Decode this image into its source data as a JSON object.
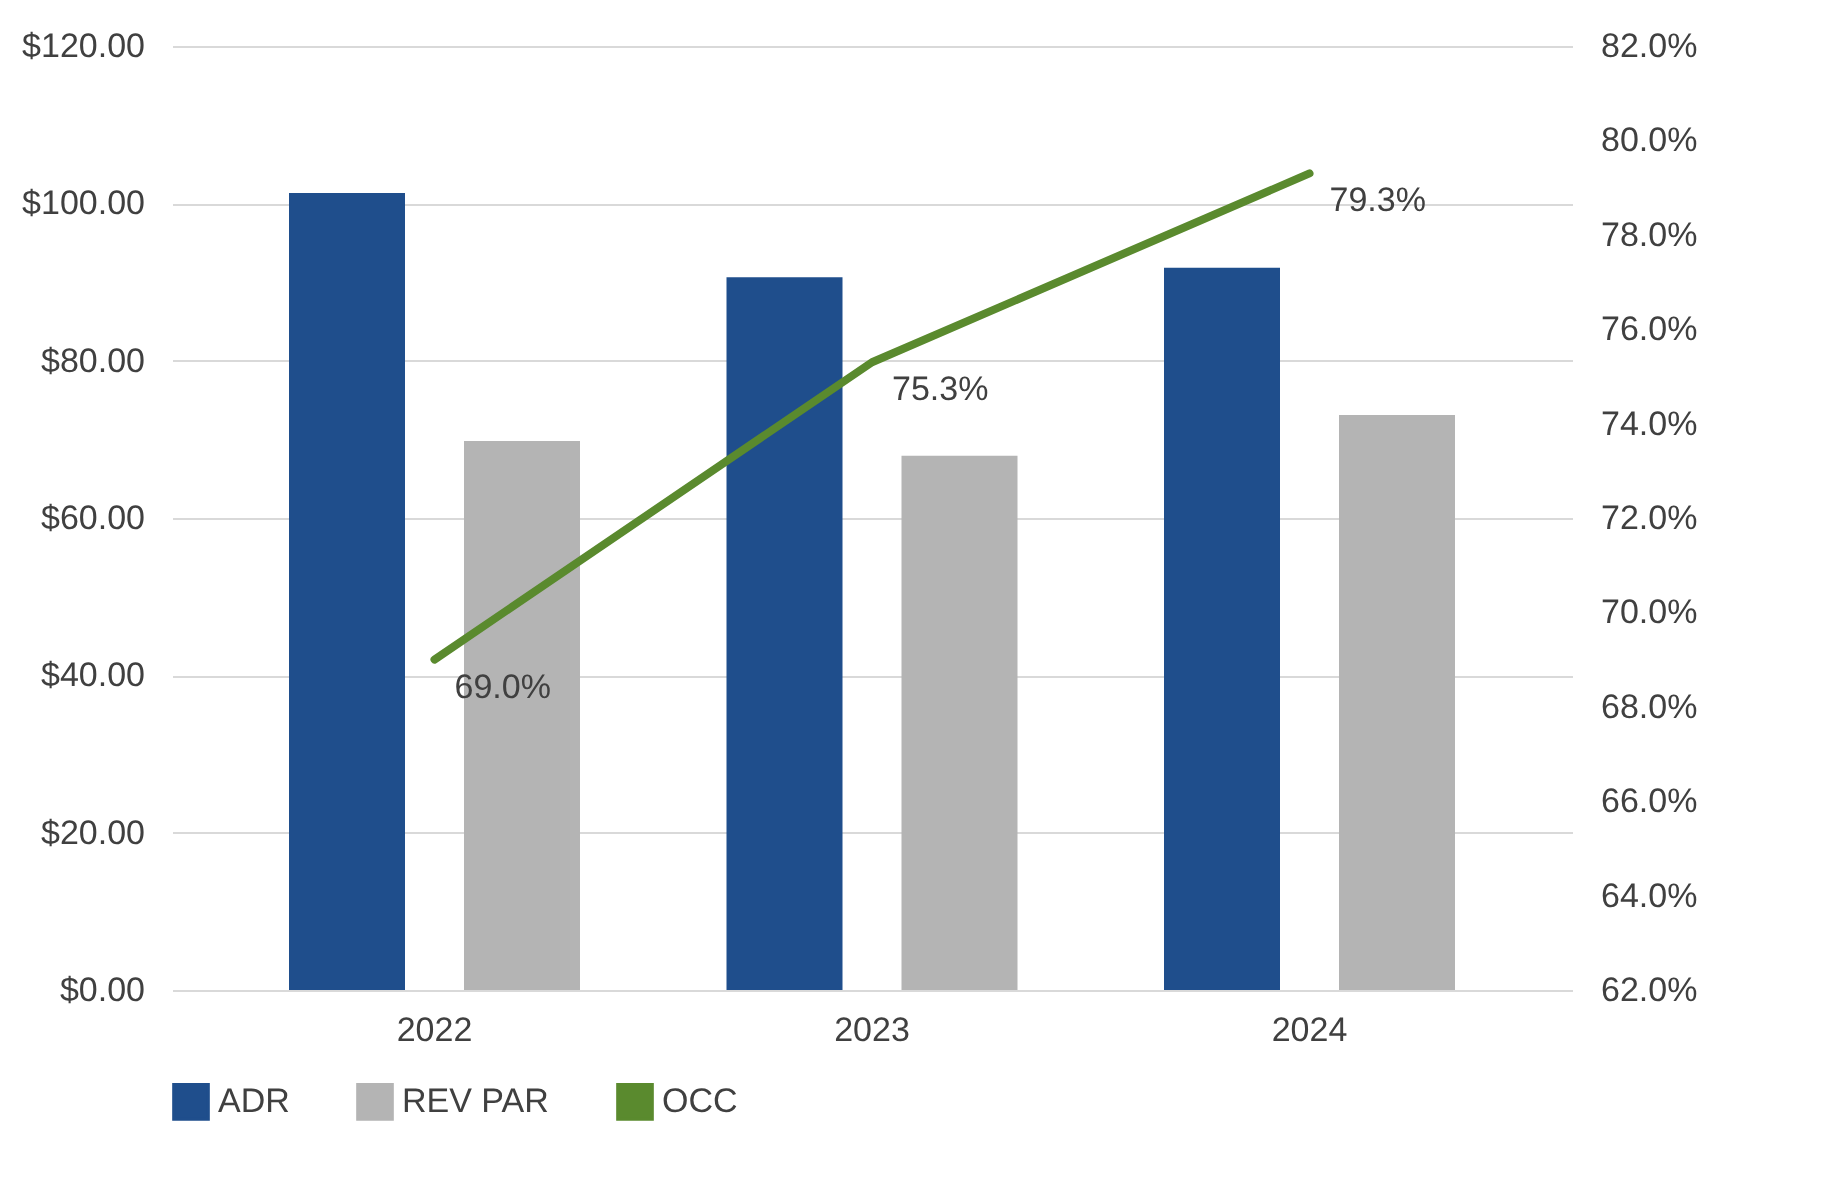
{
  "chart_data": {
    "type": "bar",
    "categories": [
      "2022",
      "2023",
      "2024"
    ],
    "series": [
      {
        "name": "ADR",
        "color": "#1f4e8c",
        "values": [
          101.3,
          90.6,
          91.8
        ]
      },
      {
        "name": "REV PAR",
        "color": "#b4b4b4",
        "values": [
          69.8,
          67.9,
          73.1
        ]
      },
      {
        "name": "OCC",
        "type": "line",
        "axis": "y2",
        "color": "#5a8a2e",
        "values": [
          69.0,
          75.3,
          79.3
        ],
        "value_labels": [
          "69.0%",
          "75.3%",
          "79.3%"
        ]
      }
    ],
    "ylim": [
      0,
      120
    ],
    "yticks": [
      {
        "value": 0,
        "label": "$0.00"
      },
      {
        "value": 20,
        "label": "$20.00"
      },
      {
        "value": 40,
        "label": "$40.00"
      },
      {
        "value": 60,
        "label": "$60.00"
      },
      {
        "value": 80,
        "label": "$80.00"
      },
      {
        "value": 100,
        "label": "$100.00"
      },
      {
        "value": 120,
        "label": "$120.00"
      }
    ],
    "y2lim": [
      62,
      82
    ],
    "y2ticks": [
      {
        "value": 62,
        "label": "62.0%"
      },
      {
        "value": 64,
        "label": "64.0%"
      },
      {
        "value": 66,
        "label": "66.0%"
      },
      {
        "value": 68,
        "label": "68.0%"
      },
      {
        "value": 70,
        "label": "70.0%"
      },
      {
        "value": 72,
        "label": "72.0%"
      },
      {
        "value": 74,
        "label": "74.0%"
      },
      {
        "value": 76,
        "label": "76.0%"
      },
      {
        "value": 78,
        "label": "78.0%"
      },
      {
        "value": 80,
        "label": "80.0%"
      },
      {
        "value": 82,
        "label": "82.0%"
      }
    ],
    "grid": "y",
    "legend": "bottom"
  }
}
